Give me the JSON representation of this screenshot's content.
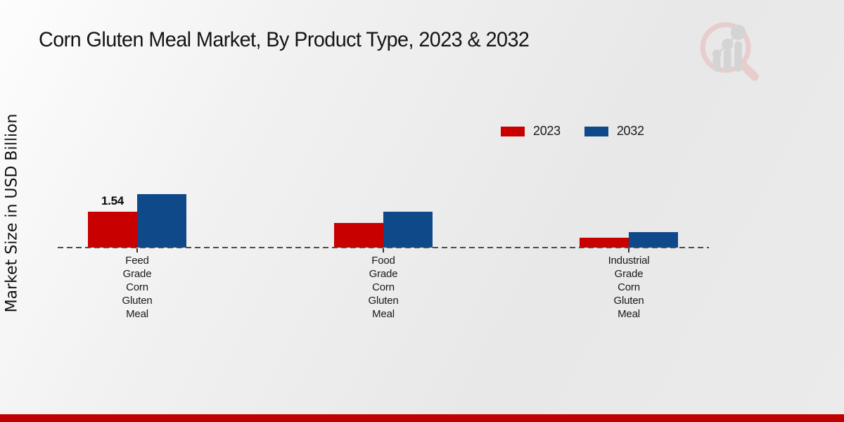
{
  "page": {
    "title": "Corn Gluten Meal Market, By Product Type, 2023 & 2032",
    "footer_bar_color": "#c00000",
    "watermark_icon": "magnifier-bar-chart-logo",
    "watermark_ring_color": "#e8cdcd",
    "watermark_bar_color": "#d4d4d4"
  },
  "chart_data": {
    "type": "bar",
    "title": "Corn Gluten Meal Market, By Product Type, 2023 & 2032",
    "xlabel": "",
    "ylabel": "Market Size in USD Billion",
    "categories": [
      "Feed Grade Corn Gluten Meal",
      "Food Grade Corn Gluten Meal",
      "Industrial Grade Corn Gluten Meal"
    ],
    "series": [
      {
        "name": "2023",
        "color": "#c90000",
        "values": [
          1.54,
          1.05,
          0.42
        ],
        "data_labels": [
          "1.54",
          "",
          ""
        ]
      },
      {
        "name": "2032",
        "color": "#10498a",
        "values": [
          2.3,
          1.54,
          0.67
        ],
        "data_labels": [
          "",
          "",
          ""
        ]
      }
    ],
    "ylim": [
      0,
      2.6
    ],
    "grid": false,
    "baseline_style": "dashed",
    "legend_position": "top-right"
  }
}
